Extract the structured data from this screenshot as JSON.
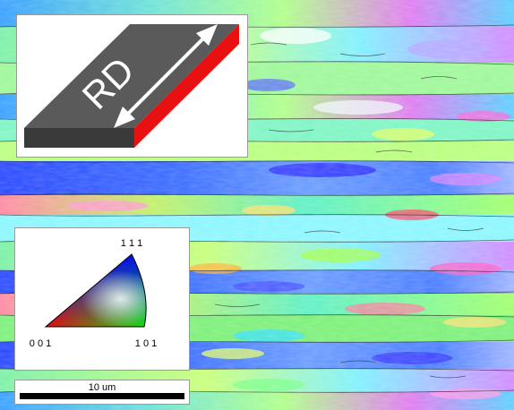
{
  "sample_inset": {
    "direction_label": "RD",
    "top_face_color": "#5a5a5a",
    "front_face_color": "#3a3a3a",
    "side_face_color": "#e81010",
    "arrow_color": "#ffffff"
  },
  "ipf_key": {
    "corner_labels": {
      "top": "1 1 1",
      "bottom_left": "0 0 1",
      "bottom_right": "1 0 1"
    }
  },
  "scale_bar": {
    "label": "10 um"
  }
}
